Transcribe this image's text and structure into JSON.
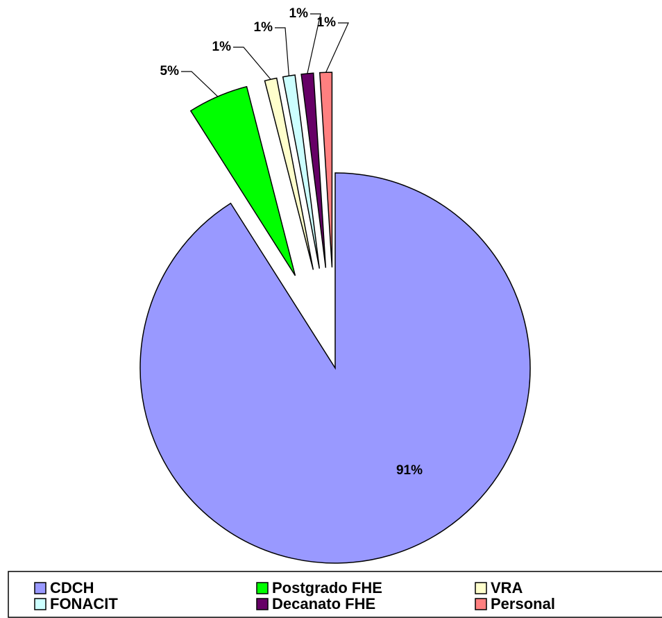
{
  "chart_data": {
    "type": "pie",
    "categories": [
      "CDCH",
      "Postgrado FHE",
      "VRA",
      "FONACIT",
      "Decanato FHE",
      "Personal"
    ],
    "values": [
      91,
      5,
      1,
      1,
      1,
      1
    ],
    "value_labels": [
      "91%",
      "5%",
      "1%",
      "1%",
      "1%",
      "1%"
    ],
    "colors": [
      "#9999ff",
      "#00ff00",
      "#ffffcc",
      "#ccffff",
      "#660066",
      "#ff8080"
    ]
  }
}
